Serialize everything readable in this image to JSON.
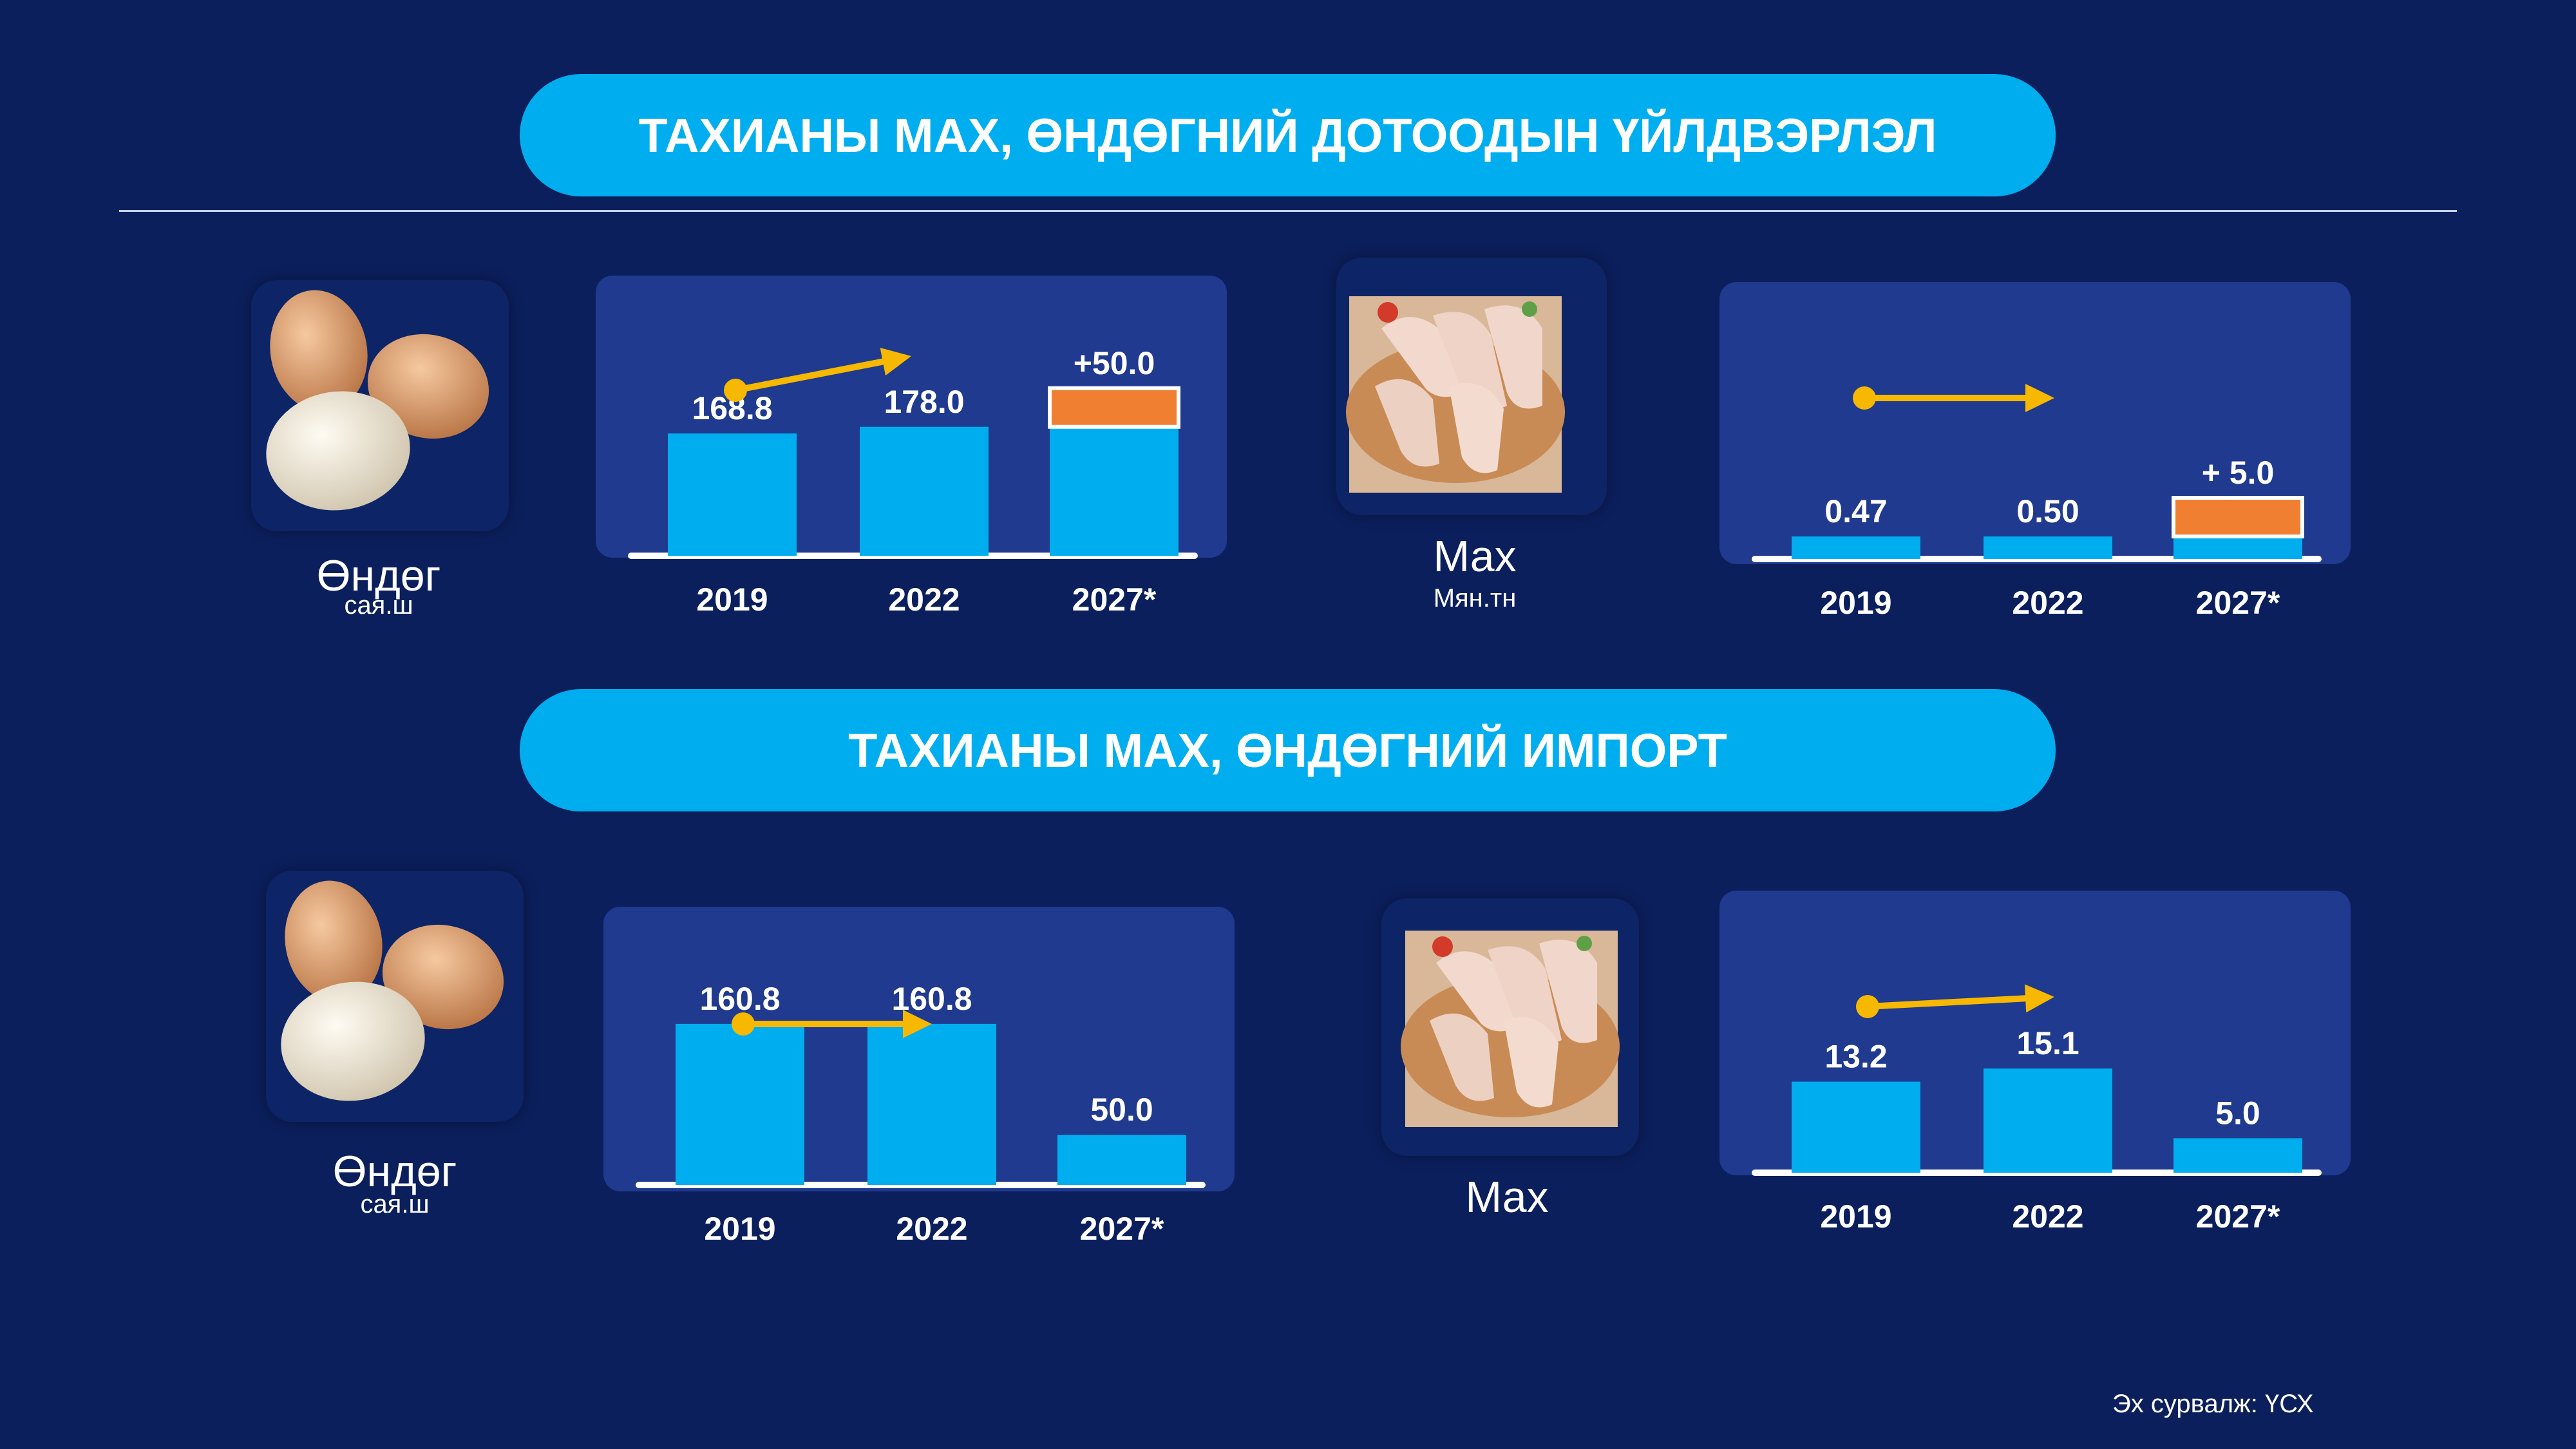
{
  "sections": {
    "domestic_title": "ТАХИАНЫ МАХ, ӨНДӨГНИЙ ДОТООДЫН ҮЙЛДВЭРЛЭЛ",
    "import_title": "ТАХИАНЫ МАХ, ӨНДӨГНИЙ ИМПОРТ"
  },
  "labels": {
    "egg": "Өндөг",
    "egg_unit": "сая.ш",
    "meat": "Мах",
    "meat_unit": "Мян.тн"
  },
  "source": "Эх сурвалж: ҮСХ",
  "colors": {
    "background": "#0b1f5c",
    "panel": "#1f3a8e",
    "bar": "#00aeef",
    "increment": "#f07f32",
    "arrow": "#f6b800",
    "banner": "#00aeef"
  },
  "chart_data": [
    {
      "type": "bar",
      "categories": [
        "2019",
        "2022",
        "2027*"
      ],
      "values": [
        168.8,
        178.0,
        178.0
      ],
      "increment": {
        "category": "2027*",
        "value": 50.0,
        "label": "+50.0"
      },
      "value_labels": [
        "168.8",
        "178.0",
        ""
      ],
      "trend_arrow": "rising"
    },
    {
      "type": "bar",
      "categories": [
        "2019",
        "2022",
        "2027*"
      ],
      "values": [
        0.47,
        0.5,
        0.5
      ],
      "increment": {
        "category": "2027*",
        "value": 5.0,
        "label": "+ 5.0"
      },
      "value_labels": [
        "0.47",
        "0.50",
        ""
      ],
      "trend_arrow": "flat"
    },
    {
      "type": "bar",
      "categories": [
        "2019",
        "2022",
        "2027*"
      ],
      "values": [
        160.8,
        160.8,
        50.0
      ],
      "value_labels": [
        "160.8",
        "160.8",
        "50.0"
      ],
      "trend_arrow": "flat"
    },
    {
      "type": "bar",
      "categories": [
        "2019",
        "2022",
        "2027*"
      ],
      "values": [
        13.2,
        15.1,
        5.0
      ],
      "value_labels": [
        "13.2",
        "15.1",
        "5.0"
      ],
      "trend_arrow": "rising"
    }
  ]
}
